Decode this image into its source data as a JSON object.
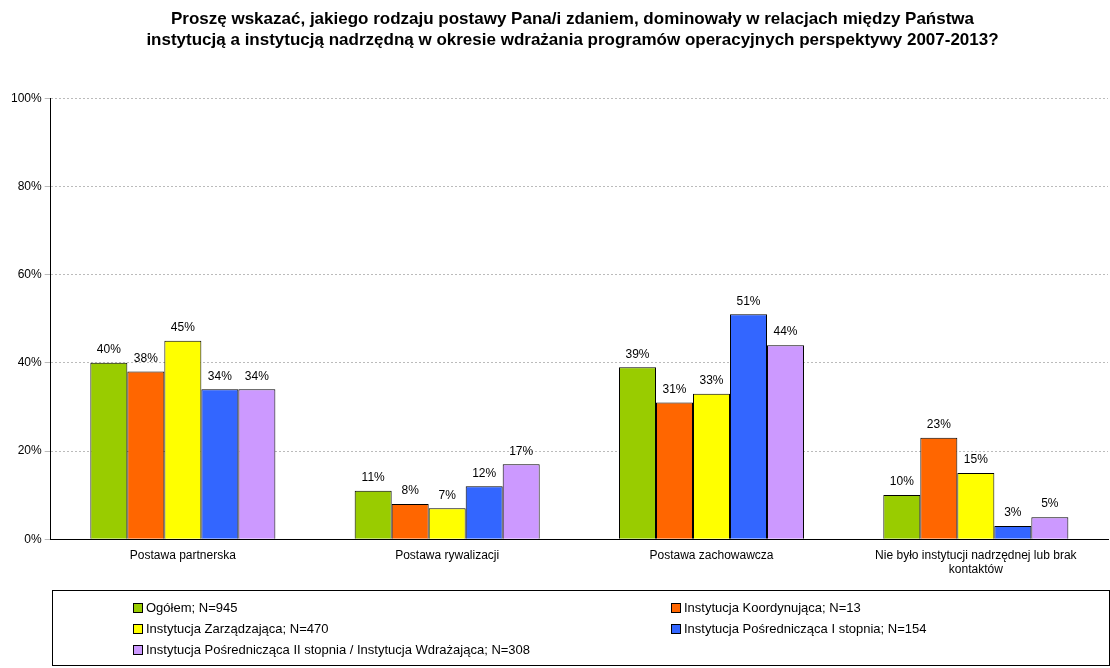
{
  "chart_data": {
    "type": "bar",
    "title": "Proszę wskazać, jakiego rodzaju postawy Pana/i zdaniem, dominowały w relacjach między Państwa instytucją a instytucją nadrzędną w okresie wdrażania programów operacyjnych perspektywy 2007-2013?",
    "categories": [
      "Postawa partnerska",
      "Postawa rywalizacji",
      "Postawa zachowawcza",
      "Nie było instytucji nadrzędnej lub brak kontaktów"
    ],
    "series": [
      {
        "name": "Ogółem; N=945",
        "color": "#99cc00",
        "values": [
          40,
          11,
          39,
          10
        ],
        "value_labels": [
          "40%",
          "11%",
          "39%",
          "10%"
        ]
      },
      {
        "name": "Instytucja Koordynująca; N=13",
        "color": "#ff6600",
        "values": [
          38,
          8,
          31,
          23
        ],
        "value_labels": [
          "38%",
          "8%",
          "31%",
          "23%"
        ]
      },
      {
        "name": "Instytucja Zarządzająca; N=470",
        "color": "#ffff00",
        "values": [
          45,
          7,
          33,
          15
        ],
        "value_labels": [
          "45%",
          "7%",
          "33%",
          "15%"
        ]
      },
      {
        "name": "Instytucja Pośrednicząca I stopnia; N=154",
        "color": "#3366ff",
        "values": [
          34,
          12,
          51,
          3
        ],
        "value_labels": [
          "34%",
          "12%",
          "51%",
          "3%"
        ]
      },
      {
        "name": "Instytucja Pośrednicząca II stopnia / Instytucja Wdrażająca; N=308",
        "color": "#cc99ff",
        "values": [
          34,
          17,
          44,
          5
        ],
        "value_labels": [
          "34%",
          "17%",
          "44%",
          "5%"
        ]
      }
    ],
    "ylim": [
      0,
      100
    ],
    "yticks": [
      {
        "value": 0,
        "label": "0%"
      },
      {
        "value": 20,
        "label": "20%"
      },
      {
        "value": 40,
        "label": "40%"
      },
      {
        "value": 60,
        "label": "60%"
      },
      {
        "value": 80,
        "label": "80%"
      },
      {
        "value": 100,
        "label": "100%"
      }
    ],
    "grid": "y",
    "legend": "bottom"
  }
}
